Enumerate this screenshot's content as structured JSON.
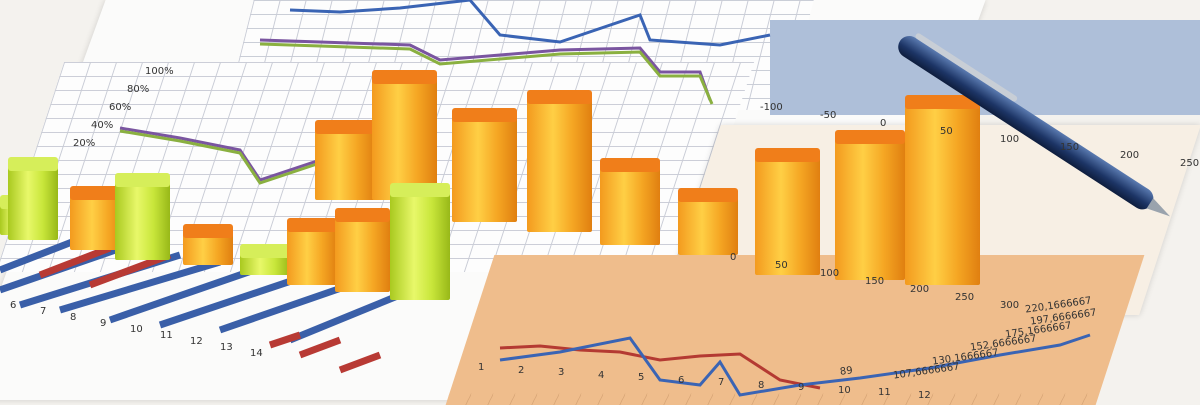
{
  "scene": {
    "description_colors": {
      "orange_bar": "#f5a623",
      "lime_bar": "#c8e63a",
      "blue_line": "#3a64b4",
      "red_line": "#b43a32",
      "orange_panel": "#efbd8c",
      "pen": "#1d3566"
    },
    "bottom_right_chart": {
      "labels": [
        "89",
        "107,6666667",
        "130,1666667",
        "152,6666667",
        "175,1666667",
        "197,6666667",
        "220,1666667"
      ],
      "x_ticks": [
        "1",
        "2",
        "3",
        "4",
        "5",
        "6",
        "7",
        "8",
        "9",
        "10",
        "11",
        "12"
      ]
    },
    "right_chart_axis": [
      "0",
      "50",
      "100",
      "150",
      "200",
      "250",
      "300"
    ],
    "top_right_axis": [
      "-100",
      "-50",
      "0",
      "50",
      "100",
      "150",
      "200",
      "250"
    ],
    "left_bottom_ticks": [
      "6",
      "7",
      "8",
      "9",
      "10",
      "11",
      "12",
      "13",
      "14"
    ],
    "middle_chart_ticks": [
      "100%",
      "80%",
      "60%",
      "40%",
      "20%"
    ]
  }
}
